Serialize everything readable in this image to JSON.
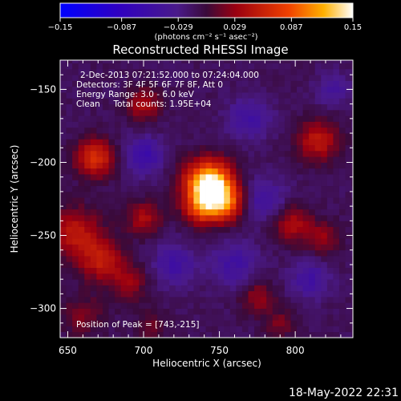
{
  "chart_data": {
    "type": "heatmap",
    "title": "Reconstructed RHESSI Image",
    "xlabel": "Heliocentric X (arcsec)",
    "ylabel": "Heliocentric Y (arcsec)",
    "xlim": [
      645,
      838
    ],
    "ylim": [
      -320,
      -130
    ],
    "xticks": [
      650,
      700,
      750,
      800
    ],
    "yticks": [
      -150,
      -200,
      -250,
      -300
    ],
    "colorbar": {
      "range": [
        -0.15,
        0.15
      ],
      "ticks": [
        "-0.15",
        "-0.087",
        "-0.029",
        "0.029",
        "0.087",
        "0.15"
      ],
      "label": "(photons cm⁻² s⁻¹ asec⁻²)"
    },
    "annotations": {
      "time": "2-Dec-2013 07:21:52.000 to 07:24:04.000",
      "detectors": "Detectors: 3F 4F 5F 6F 7F 8F, Att 0",
      "energy": "Energy Range: 3.0 - 6.0 keV",
      "clean": "Clean     Total counts: 1.95E+04",
      "peak": "Position of Peak = [743,-215]"
    },
    "peak": {
      "x": 743,
      "y": -215,
      "value": 0.15
    },
    "sources": [
      {
        "x": 743,
        "y": -215,
        "amp": 0.17,
        "sigma": 11
      },
      {
        "x": 753,
        "y": -228,
        "amp": 0.09,
        "sigma": 9
      },
      {
        "x": 737,
        "y": -232,
        "amp": 0.06,
        "sigma": 8
      },
      {
        "x": 668,
        "y": -197,
        "amp": 0.08,
        "sigma": 9
      },
      {
        "x": 700,
        "y": -160,
        "amp": 0.05,
        "sigma": 8
      },
      {
        "x": 655,
        "y": -248,
        "amp": 0.06,
        "sigma": 12
      },
      {
        "x": 672,
        "y": -267,
        "amp": 0.06,
        "sigma": 10
      },
      {
        "x": 690,
        "y": -282,
        "amp": 0.04,
        "sigma": 9
      },
      {
        "x": 700,
        "y": -238,
        "amp": 0.05,
        "sigma": 8
      },
      {
        "x": 660,
        "y": -305,
        "amp": 0.03,
        "sigma": 10
      },
      {
        "x": 815,
        "y": -185,
        "amp": 0.06,
        "sigma": 10
      },
      {
        "x": 798,
        "y": -242,
        "amp": 0.05,
        "sigma": 9
      },
      {
        "x": 818,
        "y": -252,
        "amp": 0.04,
        "sigma": 8
      },
      {
        "x": 775,
        "y": -292,
        "amp": 0.04,
        "sigma": 8
      },
      {
        "x": 790,
        "y": -310,
        "amp": 0.03,
        "sigma": 7
      },
      {
        "x": 705,
        "y": -312,
        "amp": 0.03,
        "sigma": 7
      },
      {
        "x": 700,
        "y": -195,
        "amp": -0.05,
        "sigma": 9
      },
      {
        "x": 770,
        "y": -170,
        "amp": -0.04,
        "sigma": 10
      },
      {
        "x": 780,
        "y": -225,
        "amp": -0.04,
        "sigma": 10
      },
      {
        "x": 720,
        "y": -270,
        "amp": -0.04,
        "sigma": 10
      },
      {
        "x": 760,
        "y": -270,
        "amp": -0.04,
        "sigma": 11
      },
      {
        "x": 810,
        "y": -280,
        "amp": -0.04,
        "sigma": 9
      },
      {
        "x": 825,
        "y": -150,
        "amp": -0.03,
        "sigma": 8
      }
    ],
    "background": -0.012
  },
  "footer": {
    "timestamp": "18-May-2022 22:31"
  }
}
